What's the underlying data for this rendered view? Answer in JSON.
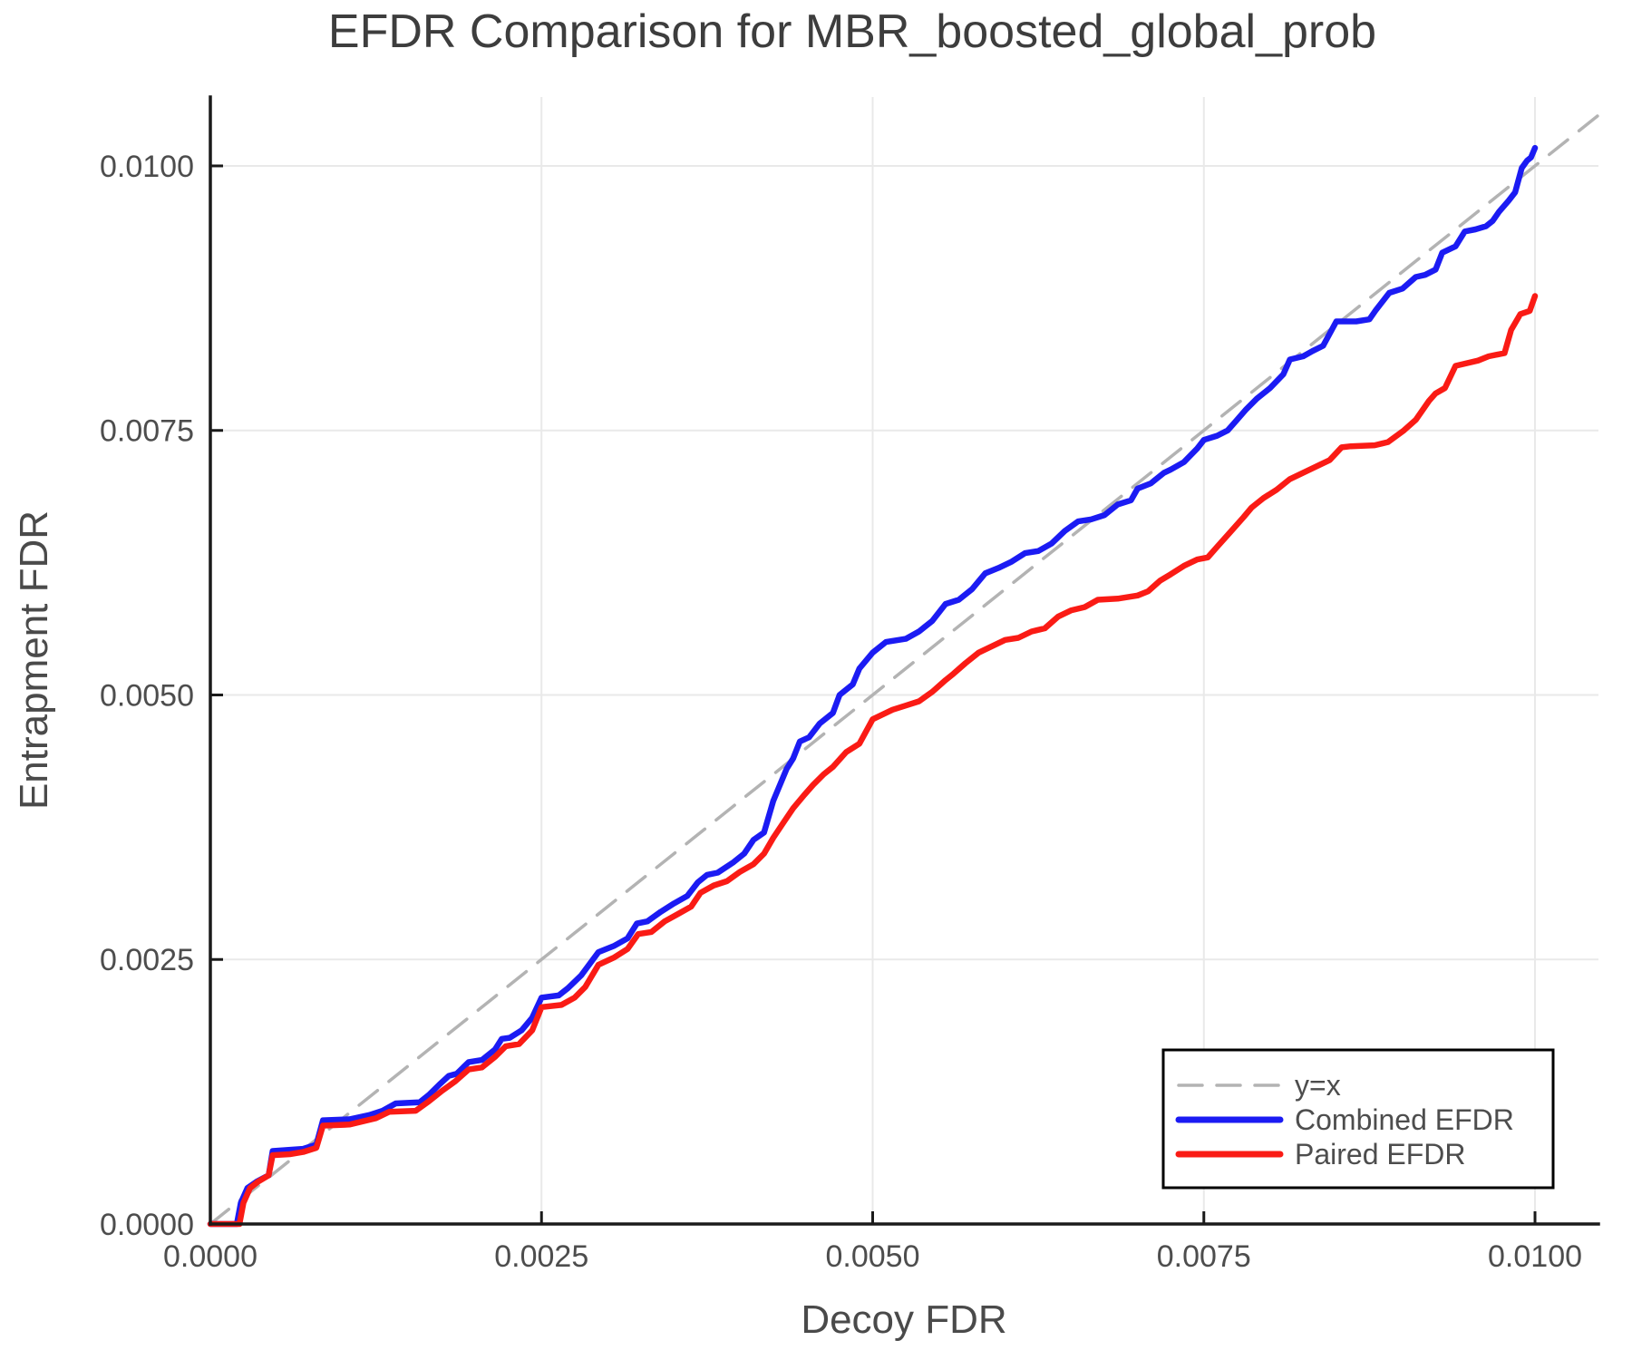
{
  "chart_data": {
    "type": "line",
    "title": "EFDR Comparison for MBR_boosted_global_prob",
    "xlabel": "Decoy FDR",
    "ylabel": "Entrapment FDR",
    "xlim": [
      0.0,
      0.010479
    ],
    "ylim": [
      0.0,
      0.010651
    ],
    "grid": true,
    "x_ticks": {
      "values": [
        0.0,
        0.0025,
        0.005,
        0.0075,
        0.01
      ],
      "labels": [
        "0.0000",
        "0.0025",
        "0.0050",
        "0.0075",
        "0.0100"
      ]
    },
    "y_ticks": {
      "values": [
        0.0,
        0.0025,
        0.005,
        0.0075,
        0.01
      ],
      "labels": [
        "0.0000",
        "0.0025",
        "0.0050",
        "0.0075",
        "0.0100"
      ]
    },
    "colors": {
      "combined": "#1b1bf3",
      "paired": "#fa1b15",
      "reference": "#b3b3b3",
      "grid": "#e9e9e9",
      "axis": "#1a1a1a",
      "text": "#4d4d4d"
    },
    "legend": {
      "position": "lower right",
      "entries": [
        {
          "label": "y=x",
          "color": "#b3b3b3",
          "dashed": true
        },
        {
          "label": "Combined EFDR",
          "color": "#1b1bf3",
          "dashed": false
        },
        {
          "label": "Paired EFDR",
          "color": "#fa1b15",
          "dashed": false
        }
      ]
    },
    "series": [
      {
        "name": "y=x",
        "style": "dashed",
        "color": "#b3b3b3",
        "points": [
          [
            0.0,
            0.0
          ],
          [
            0.010479,
            0.010479
          ]
        ]
      },
      {
        "name": "Combined EFDR",
        "style": "solid",
        "color": "#1b1bf3",
        "points": [
          [
            0.0,
            0.0
          ],
          [
            0.0002,
            0.0
          ],
          [
            0.00023,
            0.0002
          ],
          [
            0.00028,
            0.00034
          ],
          [
            0.00035,
            0.0004
          ],
          [
            0.00044,
            0.00046
          ],
          [
            0.00047,
            0.00069
          ],
          [
            0.0007,
            0.00071
          ],
          [
            0.0008,
            0.00075
          ],
          [
            0.00085,
            0.00098
          ],
          [
            0.00105,
            0.00099
          ],
          [
            0.0012,
            0.00103
          ],
          [
            0.0013,
            0.00107
          ],
          [
            0.0014,
            0.00114
          ],
          [
            0.00158,
            0.00115
          ],
          [
            0.00165,
            0.00122
          ],
          [
            0.00173,
            0.00132
          ],
          [
            0.0018,
            0.0014
          ],
          [
            0.00186,
            0.00142
          ],
          [
            0.00195,
            0.00153
          ],
          [
            0.00205,
            0.00155
          ],
          [
            0.00215,
            0.00165
          ],
          [
            0.0022,
            0.00175
          ],
          [
            0.00226,
            0.00176
          ],
          [
            0.00235,
            0.00183
          ],
          [
            0.00243,
            0.00195
          ],
          [
            0.0025,
            0.00214
          ],
          [
            0.00263,
            0.00216
          ],
          [
            0.0027,
            0.00223
          ],
          [
            0.0028,
            0.00235
          ],
          [
            0.00293,
            0.00257
          ],
          [
            0.00305,
            0.00263
          ],
          [
            0.00315,
            0.0027
          ],
          [
            0.00322,
            0.00284
          ],
          [
            0.0033,
            0.00286
          ],
          [
            0.0034,
            0.00295
          ],
          [
            0.0035,
            0.00303
          ],
          [
            0.0036,
            0.0031
          ],
          [
            0.00368,
            0.00323
          ],
          [
            0.00375,
            0.0033
          ],
          [
            0.00383,
            0.00332
          ],
          [
            0.00395,
            0.00342
          ],
          [
            0.00403,
            0.0035
          ],
          [
            0.0041,
            0.00363
          ],
          [
            0.00418,
            0.0037
          ],
          [
            0.00425,
            0.004
          ],
          [
            0.00435,
            0.0043
          ],
          [
            0.0044,
            0.0044
          ],
          [
            0.00445,
            0.00456
          ],
          [
            0.00452,
            0.0046
          ],
          [
            0.0046,
            0.00473
          ],
          [
            0.0047,
            0.00483
          ],
          [
            0.00475,
            0.005
          ],
          [
            0.00485,
            0.0051
          ],
          [
            0.0049,
            0.00525
          ],
          [
            0.005,
            0.0054
          ],
          [
            0.0051,
            0.0055
          ],
          [
            0.00525,
            0.00553
          ],
          [
            0.00535,
            0.0056
          ],
          [
            0.00545,
            0.0057
          ],
          [
            0.00555,
            0.00586
          ],
          [
            0.00565,
            0.0059
          ],
          [
            0.00575,
            0.006
          ],
          [
            0.00585,
            0.00615
          ],
          [
            0.00595,
            0.0062
          ],
          [
            0.00605,
            0.00626
          ],
          [
            0.00615,
            0.00634
          ],
          [
            0.00625,
            0.00636
          ],
          [
            0.00635,
            0.00643
          ],
          [
            0.00645,
            0.00655
          ],
          [
            0.00655,
            0.00664
          ],
          [
            0.00665,
            0.00666
          ],
          [
            0.00675,
            0.0067
          ],
          [
            0.00685,
            0.0068
          ],
          [
            0.00695,
            0.00684
          ],
          [
            0.007,
            0.00695
          ],
          [
            0.0071,
            0.007
          ],
          [
            0.0072,
            0.0071
          ],
          [
            0.00725,
            0.00713
          ],
          [
            0.00735,
            0.0072
          ],
          [
            0.00745,
            0.00733
          ],
          [
            0.0075,
            0.00741
          ],
          [
            0.0076,
            0.00745
          ],
          [
            0.00768,
            0.0075
          ],
          [
            0.00775,
            0.0076
          ],
          [
            0.00782,
            0.0077
          ],
          [
            0.0079,
            0.0078
          ],
          [
            0.008,
            0.0079
          ],
          [
            0.0081,
            0.00803
          ],
          [
            0.00815,
            0.00817
          ],
          [
            0.00825,
            0.0082
          ],
          [
            0.00832,
            0.00825
          ],
          [
            0.0084,
            0.0083
          ],
          [
            0.0085,
            0.00853
          ],
          [
            0.00865,
            0.00853
          ],
          [
            0.00875,
            0.00855
          ],
          [
            0.0088,
            0.00864
          ],
          [
            0.0089,
            0.0088
          ],
          [
            0.009,
            0.00884
          ],
          [
            0.0091,
            0.00895
          ],
          [
            0.00917,
            0.00897
          ],
          [
            0.00925,
            0.00902
          ],
          [
            0.0093,
            0.00918
          ],
          [
            0.0094,
            0.00924
          ],
          [
            0.00947,
            0.00938
          ],
          [
            0.00955,
            0.0094
          ],
          [
            0.00963,
            0.00943
          ],
          [
            0.00968,
            0.00948
          ],
          [
            0.00973,
            0.00957
          ],
          [
            0.0098,
            0.00967
          ],
          [
            0.00985,
            0.00975
          ],
          [
            0.0099,
            0.00998
          ],
          [
            0.00994,
            0.01005
          ],
          [
            0.00997,
            0.01008
          ],
          [
            0.01,
            0.01017
          ]
        ]
      },
      {
        "name": "Paired EFDR",
        "style": "solid",
        "color": "#fa1b15",
        "points": [
          [
            0.0,
            0.0
          ],
          [
            0.00022,
            0.0
          ],
          [
            0.00025,
            0.0002
          ],
          [
            0.0003,
            0.00034
          ],
          [
            0.00036,
            0.0004
          ],
          [
            0.00044,
            0.00046
          ],
          [
            0.00047,
            0.00065
          ],
          [
            0.0006,
            0.00066
          ],
          [
            0.0007,
            0.00068
          ],
          [
            0.0008,
            0.00072
          ],
          [
            0.00085,
            0.00093
          ],
          [
            0.00105,
            0.00094
          ],
          [
            0.00115,
            0.00097
          ],
          [
            0.00125,
            0.001
          ],
          [
            0.00135,
            0.00106
          ],
          [
            0.00155,
            0.00107
          ],
          [
            0.00165,
            0.00116
          ],
          [
            0.00175,
            0.00126
          ],
          [
            0.00185,
            0.00135
          ],
          [
            0.00195,
            0.00146
          ],
          [
            0.00205,
            0.00148
          ],
          [
            0.00215,
            0.00158
          ],
          [
            0.00223,
            0.00168
          ],
          [
            0.00233,
            0.0017
          ],
          [
            0.00243,
            0.00183
          ],
          [
            0.0025,
            0.00205
          ],
          [
            0.00265,
            0.00207
          ],
          [
            0.00275,
            0.00214
          ],
          [
            0.00283,
            0.00224
          ],
          [
            0.00293,
            0.00245
          ],
          [
            0.00305,
            0.00252
          ],
          [
            0.00315,
            0.0026
          ],
          [
            0.00323,
            0.00274
          ],
          [
            0.00333,
            0.00276
          ],
          [
            0.00343,
            0.00286
          ],
          [
            0.00353,
            0.00293
          ],
          [
            0.00363,
            0.003
          ],
          [
            0.0037,
            0.00313
          ],
          [
            0.0038,
            0.0032
          ],
          [
            0.0039,
            0.00324
          ],
          [
            0.004,
            0.00333
          ],
          [
            0.0041,
            0.0034
          ],
          [
            0.00418,
            0.0035
          ],
          [
            0.00425,
            0.00365
          ],
          [
            0.00433,
            0.0038
          ],
          [
            0.0044,
            0.00393
          ],
          [
            0.00448,
            0.00405
          ],
          [
            0.00455,
            0.00415
          ],
          [
            0.00463,
            0.00425
          ],
          [
            0.0047,
            0.00432
          ],
          [
            0.0048,
            0.00446
          ],
          [
            0.0049,
            0.00454
          ],
          [
            0.005,
            0.00477
          ],
          [
            0.00515,
            0.00486
          ],
          [
            0.00525,
            0.0049
          ],
          [
            0.00535,
            0.00494
          ],
          [
            0.00545,
            0.00503
          ],
          [
            0.00555,
            0.00514
          ],
          [
            0.00561,
            0.0052
          ],
          [
            0.0057,
            0.0053
          ],
          [
            0.0058,
            0.0054
          ],
          [
            0.0059,
            0.00546
          ],
          [
            0.006,
            0.00552
          ],
          [
            0.0061,
            0.00554
          ],
          [
            0.0062,
            0.0056
          ],
          [
            0.0063,
            0.00563
          ],
          [
            0.0064,
            0.00574
          ],
          [
            0.0065,
            0.0058
          ],
          [
            0.0066,
            0.00583
          ],
          [
            0.0067,
            0.0059
          ],
          [
            0.00685,
            0.00591
          ],
          [
            0.007,
            0.00594
          ],
          [
            0.00708,
            0.00598
          ],
          [
            0.00717,
            0.00608
          ],
          [
            0.00725,
            0.00614
          ],
          [
            0.00735,
            0.00622
          ],
          [
            0.00745,
            0.00628
          ],
          [
            0.00753,
            0.0063
          ],
          [
            0.0076,
            0.0064
          ],
          [
            0.0077,
            0.00654
          ],
          [
            0.0078,
            0.00668
          ],
          [
            0.00786,
            0.00677
          ],
          [
            0.00795,
            0.00686
          ],
          [
            0.00805,
            0.00694
          ],
          [
            0.00815,
            0.00704
          ],
          [
            0.00825,
            0.0071
          ],
          [
            0.00835,
            0.00716
          ],
          [
            0.00845,
            0.00722
          ],
          [
            0.00854,
            0.00734
          ],
          [
            0.00861,
            0.00735
          ],
          [
            0.00879,
            0.00736
          ],
          [
            0.00889,
            0.00739
          ],
          [
            0.00901,
            0.0075
          ],
          [
            0.0091,
            0.0076
          ],
          [
            0.0092,
            0.00778
          ],
          [
            0.00925,
            0.00785
          ],
          [
            0.00932,
            0.0079
          ],
          [
            0.0094,
            0.00811
          ],
          [
            0.00957,
            0.00816
          ],
          [
            0.00965,
            0.0082
          ],
          [
            0.00977,
            0.00823
          ],
          [
            0.00982,
            0.00845
          ],
          [
            0.00989,
            0.0086
          ],
          [
            0.00996,
            0.00863
          ],
          [
            0.01,
            0.00877
          ]
        ]
      }
    ]
  }
}
